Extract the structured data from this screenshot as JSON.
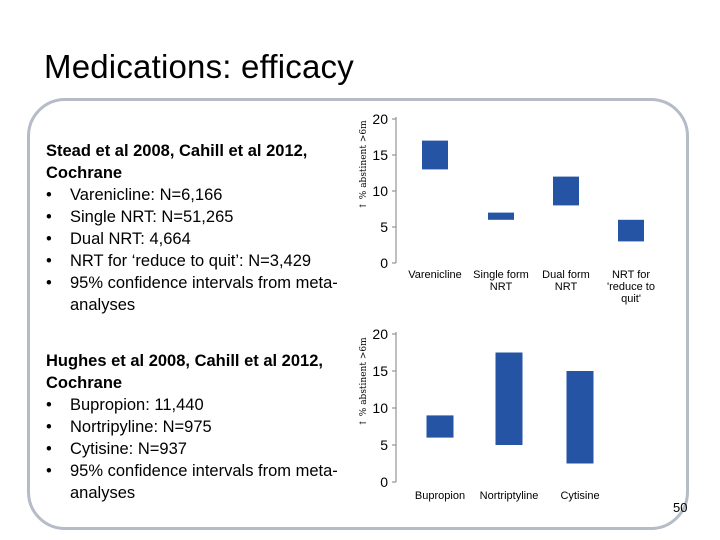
{
  "slide": {
    "title": "Medications: efficacy",
    "page_number": "50"
  },
  "text_blocks": [
    {
      "heading": "Stead et al 2008, Cahill et al 2012, Cochrane",
      "bullets": [
        "Varenicline: N=6,166",
        "Single NRT: N=51,265",
        "Dual NRT: 4,664",
        "NRT for ‘reduce to quit’: N=3,429",
        "95% confidence intervals from meta-analyses"
      ]
    },
    {
      "heading": "Hughes et al 2008, Cahill et al 2012, Cochrane",
      "bullets": [
        "Bupropion: 11,440",
        "Nortripyline: N=975",
        "Cytisine: N=937",
        "95% confidence intervals from meta-analyses"
      ]
    }
  ],
  "chart_data": [
    {
      "type": "bar",
      "subtype": "floating-range",
      "title": "",
      "ylabel": "↑ % abstinent >6m",
      "xlabel": "",
      "ylim": [
        0,
        20
      ],
      "yticks": [
        "0",
        "5",
        "10",
        "15",
        "20"
      ],
      "grid": false,
      "color": "#2654a4",
      "categories": [
        "Varenicline",
        "Single form NRT",
        "Dual form NRT",
        "NRT for 'reduce to quit'"
      ],
      "ranges": [
        [
          13,
          17
        ],
        [
          6,
          7
        ],
        [
          8,
          12
        ],
        [
          3,
          6
        ]
      ]
    },
    {
      "type": "bar",
      "subtype": "floating-range",
      "title": "",
      "ylabel": "↑ % abstinent >6m",
      "xlabel": "",
      "ylim": [
        0,
        20
      ],
      "yticks": [
        "0",
        "5",
        "10",
        "15",
        "20"
      ],
      "grid": false,
      "color": "#2654a4",
      "categories": [
        "Bupropion",
        "Nortriptyline",
        "Cytisine"
      ],
      "ranges": [
        [
          6,
          9
        ],
        [
          5,
          17.5
        ],
        [
          2.5,
          15
        ]
      ]
    }
  ]
}
